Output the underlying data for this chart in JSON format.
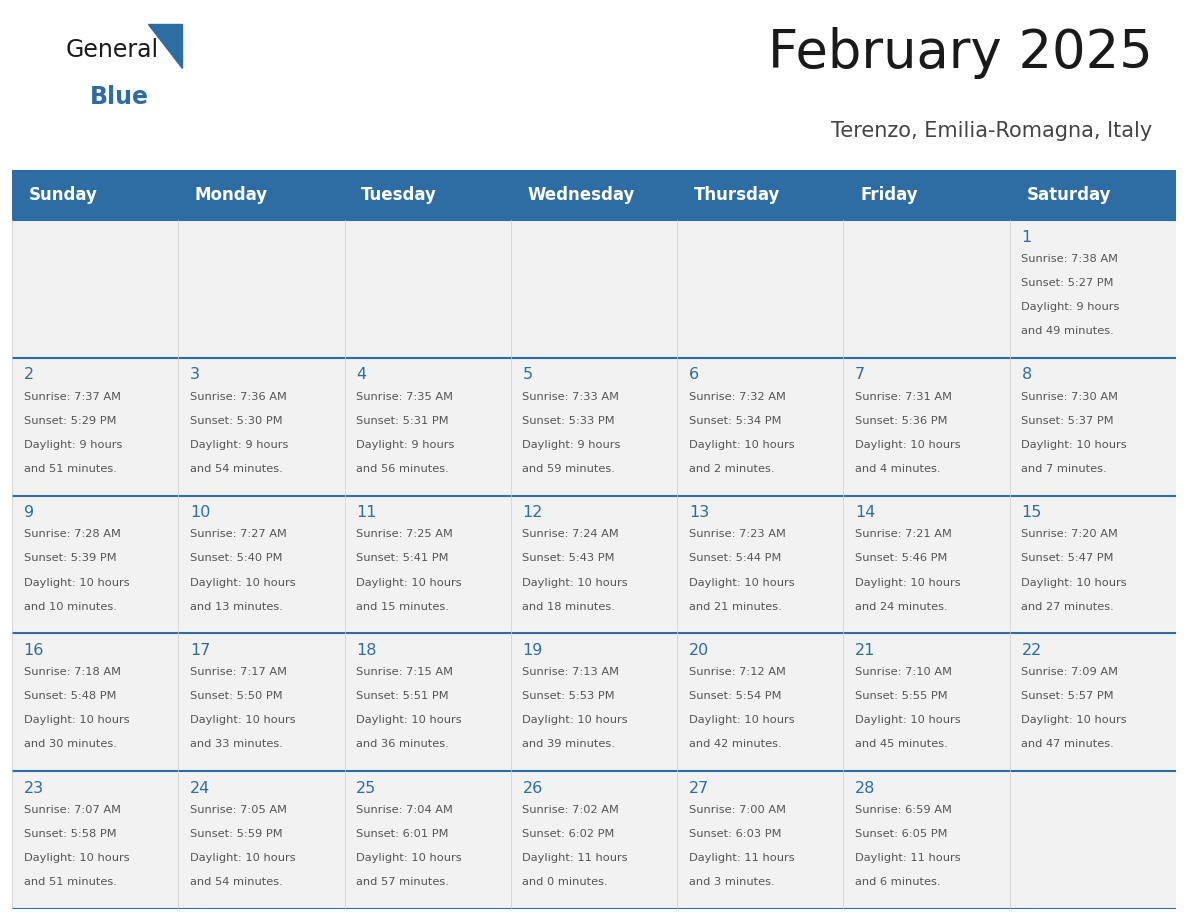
{
  "title": "February 2025",
  "subtitle": "Terenzo, Emilia-Romagna, Italy",
  "header_bg": "#2E6DA4",
  "header_text_color": "#FFFFFF",
  "cell_bg": "#F2F2F2",
  "day_number_color": "#2E6DA4",
  "info_text_color": "#555555",
  "border_color": "#2E6DA4",
  "inner_border_color": "#CCCCCC",
  "days_of_week": [
    "Sunday",
    "Monday",
    "Tuesday",
    "Wednesday",
    "Thursday",
    "Friday",
    "Saturday"
  ],
  "calendar_data": [
    [
      null,
      null,
      null,
      null,
      null,
      null,
      {
        "day": "1",
        "sunrise": "7:38 AM",
        "sunset": "5:27 PM",
        "daylight_h": "9 hours",
        "daylight_m": "and 49 minutes."
      }
    ],
    [
      {
        "day": "2",
        "sunrise": "7:37 AM",
        "sunset": "5:29 PM",
        "daylight_h": "9 hours",
        "daylight_m": "and 51 minutes."
      },
      {
        "day": "3",
        "sunrise": "7:36 AM",
        "sunset": "5:30 PM",
        "daylight_h": "9 hours",
        "daylight_m": "and 54 minutes."
      },
      {
        "day": "4",
        "sunrise": "7:35 AM",
        "sunset": "5:31 PM",
        "daylight_h": "9 hours",
        "daylight_m": "and 56 minutes."
      },
      {
        "day": "5",
        "sunrise": "7:33 AM",
        "sunset": "5:33 PM",
        "daylight_h": "9 hours",
        "daylight_m": "and 59 minutes."
      },
      {
        "day": "6",
        "sunrise": "7:32 AM",
        "sunset": "5:34 PM",
        "daylight_h": "10 hours",
        "daylight_m": "and 2 minutes."
      },
      {
        "day": "7",
        "sunrise": "7:31 AM",
        "sunset": "5:36 PM",
        "daylight_h": "10 hours",
        "daylight_m": "and 4 minutes."
      },
      {
        "day": "8",
        "sunrise": "7:30 AM",
        "sunset": "5:37 PM",
        "daylight_h": "10 hours",
        "daylight_m": "and 7 minutes."
      }
    ],
    [
      {
        "day": "9",
        "sunrise": "7:28 AM",
        "sunset": "5:39 PM",
        "daylight_h": "10 hours",
        "daylight_m": "and 10 minutes."
      },
      {
        "day": "10",
        "sunrise": "7:27 AM",
        "sunset": "5:40 PM",
        "daylight_h": "10 hours",
        "daylight_m": "and 13 minutes."
      },
      {
        "day": "11",
        "sunrise": "7:25 AM",
        "sunset": "5:41 PM",
        "daylight_h": "10 hours",
        "daylight_m": "and 15 minutes."
      },
      {
        "day": "12",
        "sunrise": "7:24 AM",
        "sunset": "5:43 PM",
        "daylight_h": "10 hours",
        "daylight_m": "and 18 minutes."
      },
      {
        "day": "13",
        "sunrise": "7:23 AM",
        "sunset": "5:44 PM",
        "daylight_h": "10 hours",
        "daylight_m": "and 21 minutes."
      },
      {
        "day": "14",
        "sunrise": "7:21 AM",
        "sunset": "5:46 PM",
        "daylight_h": "10 hours",
        "daylight_m": "and 24 minutes."
      },
      {
        "day": "15",
        "sunrise": "7:20 AM",
        "sunset": "5:47 PM",
        "daylight_h": "10 hours",
        "daylight_m": "and 27 minutes."
      }
    ],
    [
      {
        "day": "16",
        "sunrise": "7:18 AM",
        "sunset": "5:48 PM",
        "daylight_h": "10 hours",
        "daylight_m": "and 30 minutes."
      },
      {
        "day": "17",
        "sunrise": "7:17 AM",
        "sunset": "5:50 PM",
        "daylight_h": "10 hours",
        "daylight_m": "and 33 minutes."
      },
      {
        "day": "18",
        "sunrise": "7:15 AM",
        "sunset": "5:51 PM",
        "daylight_h": "10 hours",
        "daylight_m": "and 36 minutes."
      },
      {
        "day": "19",
        "sunrise": "7:13 AM",
        "sunset": "5:53 PM",
        "daylight_h": "10 hours",
        "daylight_m": "and 39 minutes."
      },
      {
        "day": "20",
        "sunrise": "7:12 AM",
        "sunset": "5:54 PM",
        "daylight_h": "10 hours",
        "daylight_m": "and 42 minutes."
      },
      {
        "day": "21",
        "sunrise": "7:10 AM",
        "sunset": "5:55 PM",
        "daylight_h": "10 hours",
        "daylight_m": "and 45 minutes."
      },
      {
        "day": "22",
        "sunrise": "7:09 AM",
        "sunset": "5:57 PM",
        "daylight_h": "10 hours",
        "daylight_m": "and 47 minutes."
      }
    ],
    [
      {
        "day": "23",
        "sunrise": "7:07 AM",
        "sunset": "5:58 PM",
        "daylight_h": "10 hours",
        "daylight_m": "and 51 minutes."
      },
      {
        "day": "24",
        "sunrise": "7:05 AM",
        "sunset": "5:59 PM",
        "daylight_h": "10 hours",
        "daylight_m": "and 54 minutes."
      },
      {
        "day": "25",
        "sunrise": "7:04 AM",
        "sunset": "6:01 PM",
        "daylight_h": "10 hours",
        "daylight_m": "and 57 minutes."
      },
      {
        "day": "26",
        "sunrise": "7:02 AM",
        "sunset": "6:02 PM",
        "daylight_h": "11 hours",
        "daylight_m": "and 0 minutes."
      },
      {
        "day": "27",
        "sunrise": "7:00 AM",
        "sunset": "6:03 PM",
        "daylight_h": "11 hours",
        "daylight_m": "and 3 minutes."
      },
      {
        "day": "28",
        "sunrise": "6:59 AM",
        "sunset": "6:05 PM",
        "daylight_h": "11 hours",
        "daylight_m": "and 6 minutes."
      },
      null
    ]
  ]
}
